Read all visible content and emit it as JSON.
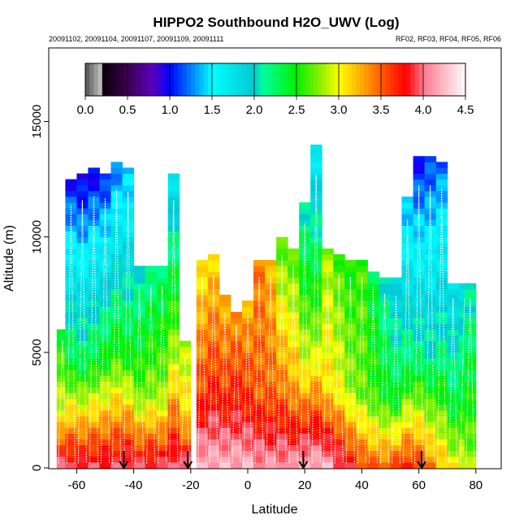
{
  "chart_data": {
    "type": "heatmap",
    "title": "HIPPO2 Southbound H2O_UWV (Log)",
    "subtitle_left": "20091102, 20091104, 20091107, 20091109, 20091111",
    "subtitle_right": "RF02, RF03, RF04, RF05, RF06",
    "xlabel": "Latitude",
    "ylabel": "Altitude (m)",
    "xlim": [
      -67,
      89
    ],
    "ylim": [
      0,
      15000
    ],
    "x_ticks": [
      -60,
      -40,
      -20,
      0,
      20,
      40,
      60,
      80
    ],
    "x_tick_labels": [
      "-60",
      "-40",
      "-20",
      "0",
      "20",
      "40",
      "60",
      "80"
    ],
    "y_ticks": [
      0,
      5000,
      10000,
      15000
    ],
    "y_tick_labels": [
      "0",
      "5000",
      "10000",
      "15000"
    ],
    "colorbar": {
      "range": [
        0.0,
        4.5
      ],
      "ticks": [
        0.0,
        0.5,
        1.0,
        1.5,
        2.0,
        2.5,
        3.0,
        3.5,
        4.0,
        4.5
      ],
      "tick_labels": [
        "0.0",
        "0.5",
        "1.0",
        "1.5",
        "2.0",
        "2.5",
        "3.0",
        "3.5",
        "4.0",
        "4.5"
      ],
      "placement": "top"
    },
    "arrows_latitude": [
      -43.5,
      -21,
      19.5,
      61
    ],
    "profile_columns": [
      {
        "lat": -65,
        "top": 6000,
        "surface": 4.0,
        "mid": 3.0,
        "upper": 2.4
      },
      {
        "lat": -62,
        "top": 12400,
        "surface": 3.9,
        "mid": 2.4,
        "upper": 1.0
      },
      {
        "lat": -58,
        "top": 12600,
        "surface": 3.9,
        "mid": 2.3,
        "upper": 0.9
      },
      {
        "lat": -54,
        "top": 12800,
        "surface": 3.9,
        "mid": 2.4,
        "upper": 0.95
      },
      {
        "lat": -50,
        "top": 12700,
        "surface": 3.9,
        "mid": 2.5,
        "upper": 1.0
      },
      {
        "lat": -46,
        "top": 13100,
        "surface": 3.9,
        "mid": 2.6,
        "upper": 1.2
      },
      {
        "lat": -42,
        "top": 13000,
        "surface": 4.0,
        "mid": 2.5,
        "upper": 1.3
      },
      {
        "lat": -38,
        "top": 8600,
        "surface": 3.9,
        "mid": 2.7,
        "upper": 2.0
      },
      {
        "lat": -34,
        "top": 8600,
        "surface": 3.9,
        "mid": 2.8,
        "upper": 2.1
      },
      {
        "lat": -30,
        "top": 8600,
        "surface": 3.9,
        "mid": 2.8,
        "upper": 2.2
      },
      {
        "lat": -26,
        "top": 12600,
        "surface": 4.0,
        "mid": 2.9,
        "upper": 1.7
      },
      {
        "lat": -22,
        "top": 5300,
        "surface": 4.0,
        "mid": 3.2,
        "upper": 2.8
      },
      {
        "lat": -16,
        "top": 9000,
        "surface": 4.2,
        "mid": 3.6,
        "upper": 3.0
      },
      {
        "lat": -12,
        "top": 9100,
        "surface": 4.2,
        "mid": 3.7,
        "upper": 3.1
      },
      {
        "lat": -8,
        "top": 7300,
        "surface": 4.2,
        "mid": 3.7,
        "upper": 3.2
      },
      {
        "lat": -4,
        "top": 6700,
        "surface": 4.2,
        "mid": 3.8,
        "upper": 3.3
      },
      {
        "lat": 0,
        "top": 7200,
        "surface": 4.2,
        "mid": 3.7,
        "upper": 3.2
      },
      {
        "lat": 4,
        "top": 9000,
        "surface": 4.1,
        "mid": 3.5,
        "upper": 3.4
      },
      {
        "lat": 8,
        "top": 9000,
        "surface": 4.1,
        "mid": 3.5,
        "upper": 3.2
      },
      {
        "lat": 12,
        "top": 10000,
        "surface": 4.1,
        "mid": 3.4,
        "upper": 2.6
      },
      {
        "lat": 16,
        "top": 9500,
        "surface": 4.1,
        "mid": 3.3,
        "upper": 2.6
      },
      {
        "lat": 20,
        "top": 11500,
        "surface": 4.2,
        "mid": 3.0,
        "upper": 2.0
      },
      {
        "lat": 24,
        "top": 13800,
        "surface": 4.2,
        "mid": 2.9,
        "upper": 1.6
      },
      {
        "lat": 28,
        "top": 9300,
        "surface": 4.2,
        "mid": 3.1,
        "upper": 2.8
      },
      {
        "lat": 32,
        "top": 9100,
        "surface": 4.0,
        "mid": 3.0,
        "upper": 2.6
      },
      {
        "lat": 36,
        "top": 9000,
        "surface": 3.8,
        "mid": 2.8,
        "upper": 2.5
      },
      {
        "lat": 40,
        "top": 9000,
        "surface": 3.6,
        "mid": 2.7,
        "upper": 2.6
      },
      {
        "lat": 44,
        "top": 8500,
        "surface": 3.5,
        "mid": 2.6,
        "upper": 2.3
      },
      {
        "lat": 48,
        "top": 8200,
        "surface": 3.5,
        "mid": 2.5,
        "upper": 2.0
      },
      {
        "lat": 52,
        "top": 8100,
        "surface": 3.6,
        "mid": 2.4,
        "upper": 1.8
      },
      {
        "lat": 56,
        "top": 11700,
        "surface": 3.7,
        "mid": 2.3,
        "upper": 1.3
      },
      {
        "lat": 60,
        "top": 13300,
        "surface": 3.6,
        "mid": 2.2,
        "upper": 1.0
      },
      {
        "lat": 64,
        "top": 13300,
        "surface": 3.4,
        "mid": 2.1,
        "upper": 1.1
      },
      {
        "lat": 68,
        "top": 13200,
        "surface": 3.2,
        "mid": 2.2,
        "upper": 1.2
      },
      {
        "lat": 72,
        "top": 8000,
        "surface": 3.0,
        "mid": 2.3,
        "upper": 1.7
      },
      {
        "lat": 76,
        "top": 8000,
        "surface": 3.0,
        "mid": 2.4,
        "upper": 1.8
      },
      {
        "lat": 78,
        "top": 8000,
        "surface": 2.8,
        "mid": 2.5,
        "upper": 2.0
      }
    ],
    "grid": false
  }
}
